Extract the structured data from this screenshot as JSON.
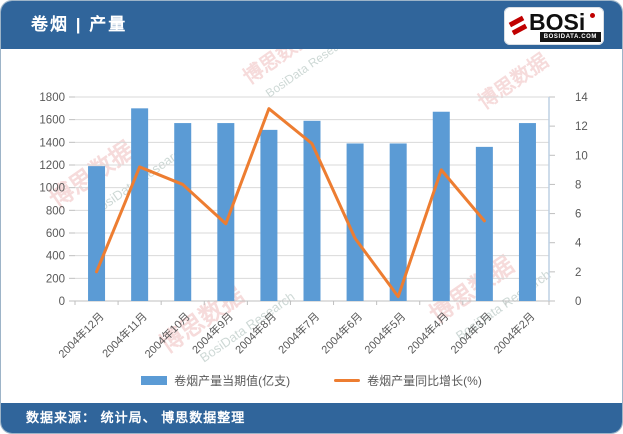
{
  "header": {
    "title": "卷烟 | 产量"
  },
  "logo": {
    "text": "BOSi",
    "subtext": "BOSIDATA.COM",
    "accent_color": "#C00000"
  },
  "footer": {
    "source": "数据来源： 统计局、 博思数据整理"
  },
  "colors": {
    "header_bg": "#30659B",
    "bar": "#5B9BD5",
    "line": "#ED7D31",
    "grid": "#D9D9D9",
    "axis_text": "#595959",
    "right_axis_line": "#BDD0E4"
  },
  "watermarks": {
    "cn": "博思数据",
    "en": "BosiData Research",
    "logo": "BOSi"
  },
  "chart_data": {
    "type": "bar",
    "title": "卷烟产量",
    "categories": [
      "2004年12月",
      "2004年11月",
      "2004年10月",
      "2004年9月",
      "2004年8月",
      "2004年7月",
      "2004年6月",
      "2004年5月",
      "2004年4月",
      "2004年3月",
      "2004年2月"
    ],
    "series": [
      {
        "name": "卷烟产量当期值(亿支)",
        "type": "bar",
        "axis": "left",
        "color": "#5B9BD5",
        "values": [
          1190,
          1700,
          1570,
          1570,
          1510,
          1590,
          1390,
          1390,
          1670,
          1360,
          1570
        ]
      },
      {
        "name": "卷烟产量同比增长(%)",
        "type": "line",
        "axis": "right",
        "color": "#ED7D31",
        "values": [
          2.0,
          9.2,
          8.0,
          5.3,
          13.2,
          10.8,
          4.3,
          0.3,
          9.0,
          5.5,
          null
        ]
      }
    ],
    "left_axis": {
      "min": 0,
      "max": 1800,
      "step": 200
    },
    "right_axis": {
      "min": 0,
      "max": 14,
      "step": 2
    },
    "grid": true,
    "legend_position": "bottom"
  }
}
